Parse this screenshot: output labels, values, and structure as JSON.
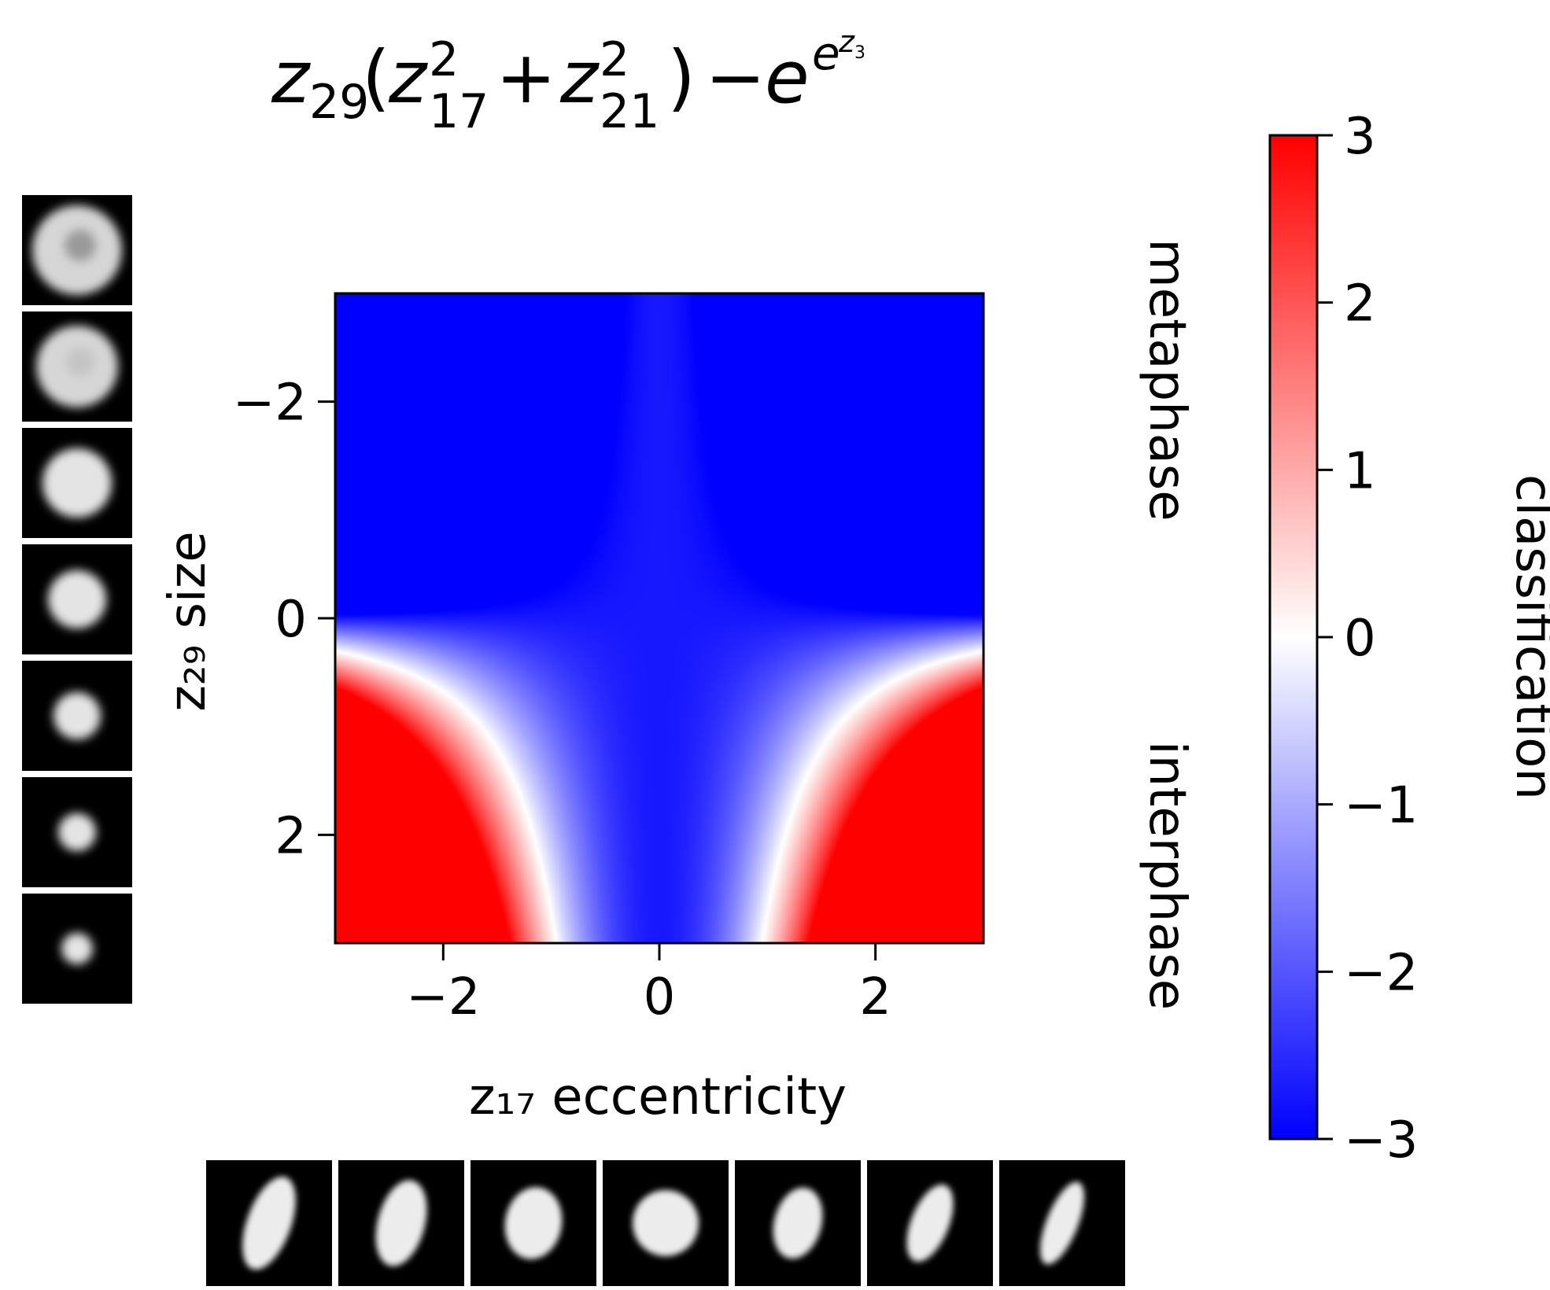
{
  "chart_data": {
    "type": "heatmap",
    "title": "z₂₉(z₁₇² + z₂₁²) − e^(e^(z₃))",
    "function": "z29*(z17^2 + z21^2) - exp(exp(z3))",
    "xlabel": "z₁₇ eccentricity",
    "ylabel": "z₂₉ size",
    "xlim": [
      -3,
      3
    ],
    "ylim": [
      3,
      -3
    ],
    "y_inverted": true,
    "xticks": [
      -2,
      0,
      2
    ],
    "yticks": [
      -2,
      0,
      2
    ],
    "xtick_labels": [
      "−2",
      "0",
      "2"
    ],
    "ytick_labels": [
      "−2",
      "0",
      "2"
    ],
    "colormap": "bwr",
    "colorbar": {
      "label": "classification",
      "range": [
        -3,
        3
      ],
      "ticks": [
        -3,
        -2,
        -1,
        0,
        1,
        2,
        3
      ],
      "tick_labels": [
        "−3",
        "−2",
        "−1",
        "0",
        "1",
        "2",
        "3"
      ]
    },
    "class_labels": {
      "upper": "metaphase",
      "lower": "interphase"
    },
    "colors": {
      "low": "#0000ff",
      "mid": "#ffffff",
      "high": "#ff0000"
    },
    "grid": false,
    "size_thumbnails": 7,
    "eccentricity_thumbnails": 7
  }
}
